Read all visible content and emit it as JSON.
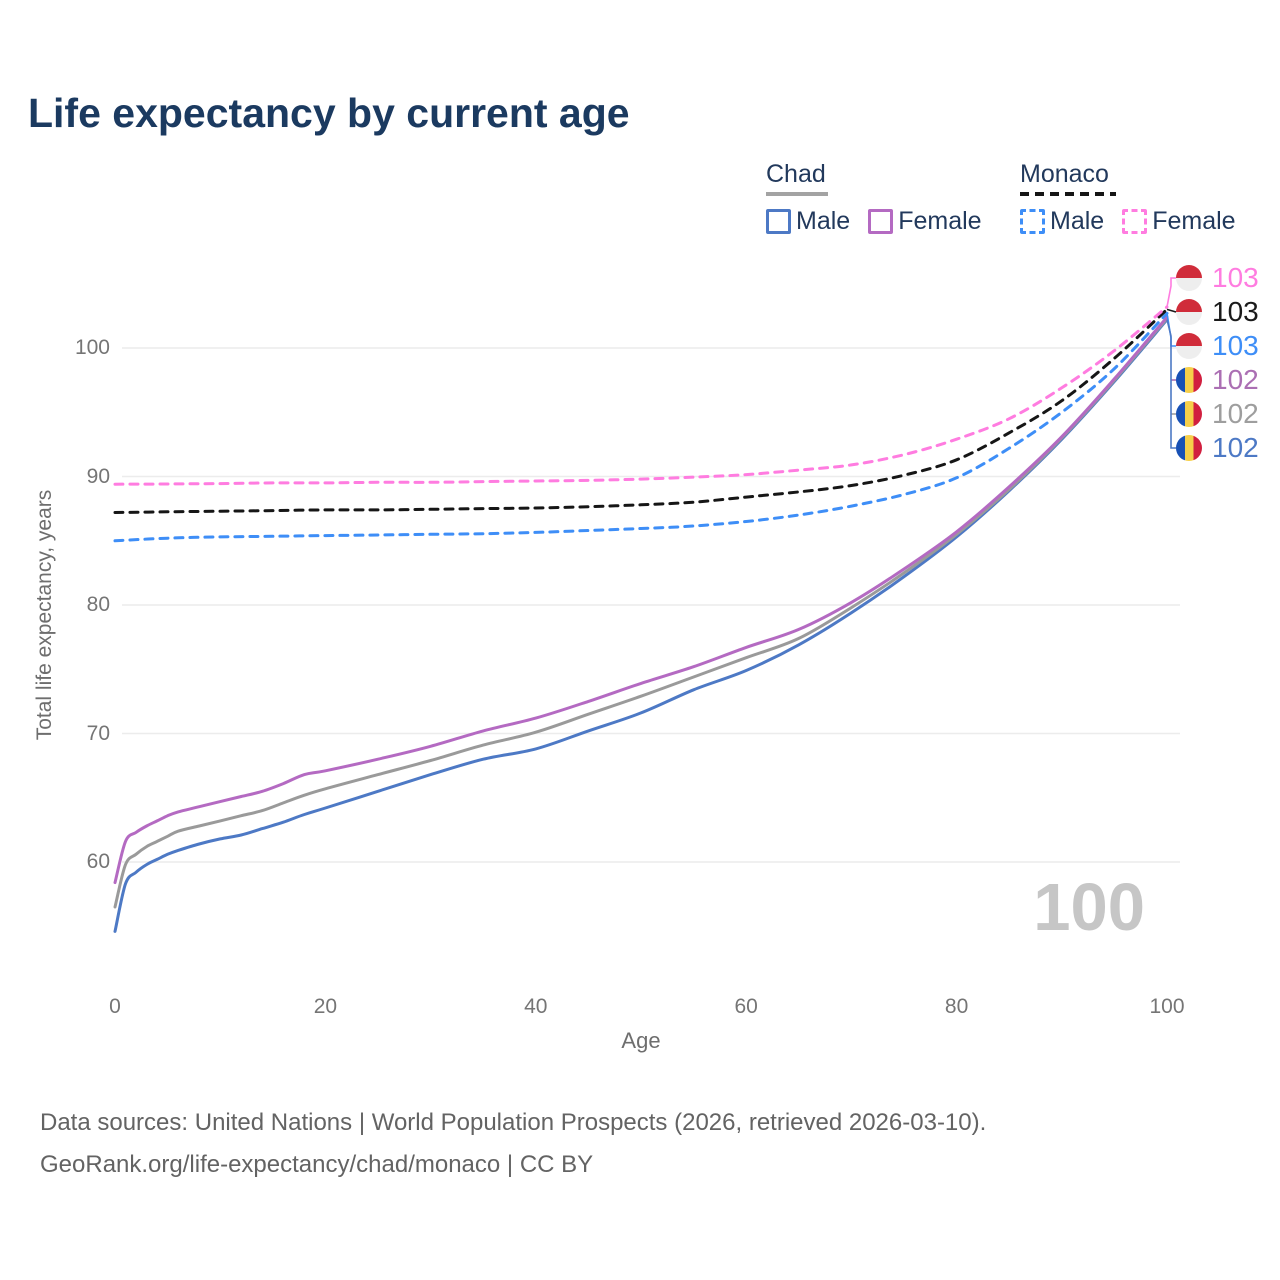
{
  "title": "Life expectancy by current age",
  "watermark": "100",
  "legend": {
    "chad": {
      "label": "Chad",
      "male": "Male",
      "female": "Female"
    },
    "monaco": {
      "label": "Monaco",
      "male": "Male",
      "female": "Female"
    }
  },
  "axes": {
    "y_label": "Total life expectancy, years",
    "x_label": "Age"
  },
  "footer": {
    "line1": "Data sources: United Nations | World Population Prospects (2026, retrieved 2026-03-10).",
    "line2": "GeoRank.org/life-expectancy/chad/monaco | CC BY"
  },
  "end_labels": [
    {
      "value": "103",
      "color": "#ff7ce0",
      "flag": "monaco",
      "series_index": 5
    },
    {
      "value": "103",
      "color": "#1a1a1a",
      "flag": "monaco",
      "series_index": 4
    },
    {
      "value": "103",
      "color": "#3e8ef7",
      "flag": "monaco",
      "series_index": 3
    },
    {
      "value": "102",
      "color": "#ab6fb3",
      "flag": "chad",
      "series_index": 2
    },
    {
      "value": "102",
      "color": "#9e9e9e",
      "flag": "chad",
      "series_index": 1
    },
    {
      "value": "102",
      "color": "#4d79c5",
      "flag": "chad",
      "series_index": 0
    }
  ],
  "chart_data": {
    "type": "line",
    "title": "Life expectancy by current age",
    "xlabel": "Age",
    "ylabel": "Total life expectancy, years",
    "x_ticks": [
      0,
      20,
      40,
      60,
      80,
      100
    ],
    "y_ticks": [
      100,
      90,
      80,
      70,
      60
    ],
    "xlim": [
      0,
      100
    ],
    "ylim": [
      54,
      104
    ],
    "grid": "horizontal-only",
    "legend_position": "top-right",
    "series": [
      {
        "name": "Chad Male",
        "country": "Chad",
        "group": "Male",
        "style": "solid",
        "color": "#4d79c5",
        "end_label": 102,
        "points": [
          [
            0,
            54.6
          ],
          [
            1,
            58.3
          ],
          [
            2,
            59.2
          ],
          [
            3,
            59.8
          ],
          [
            4,
            60.2
          ],
          [
            5,
            60.6
          ],
          [
            6,
            60.9
          ],
          [
            8,
            61.4
          ],
          [
            10,
            61.8
          ],
          [
            12,
            62.1
          ],
          [
            14,
            62.6
          ],
          [
            16,
            63.1
          ],
          [
            18,
            63.7
          ],
          [
            20,
            64.2
          ],
          [
            25,
            65.5
          ],
          [
            30,
            66.8
          ],
          [
            35,
            68.0
          ],
          [
            40,
            68.8
          ],
          [
            45,
            70.2
          ],
          [
            50,
            71.6
          ],
          [
            55,
            73.4
          ],
          [
            60,
            74.9
          ],
          [
            65,
            76.9
          ],
          [
            70,
            79.4
          ],
          [
            75,
            82.2
          ],
          [
            80,
            85.3
          ],
          [
            85,
            88.9
          ],
          [
            90,
            92.9
          ],
          [
            95,
            97.4
          ],
          [
            100,
            102.2
          ]
        ]
      },
      {
        "name": "Chad (both sexes)",
        "country": "Chad",
        "group": "Both",
        "style": "solid",
        "color": "#9a9a9a",
        "end_label": 102,
        "points": [
          [
            0,
            56.5
          ],
          [
            1,
            59.8
          ],
          [
            2,
            60.6
          ],
          [
            3,
            61.2
          ],
          [
            4,
            61.6
          ],
          [
            5,
            62.0
          ],
          [
            6,
            62.4
          ],
          [
            8,
            62.8
          ],
          [
            10,
            63.2
          ],
          [
            12,
            63.6
          ],
          [
            14,
            64.0
          ],
          [
            16,
            64.6
          ],
          [
            18,
            65.2
          ],
          [
            20,
            65.7
          ],
          [
            25,
            66.8
          ],
          [
            30,
            67.9
          ],
          [
            35,
            69.1
          ],
          [
            40,
            70.1
          ],
          [
            45,
            71.5
          ],
          [
            50,
            72.9
          ],
          [
            55,
            74.4
          ],
          [
            60,
            75.9
          ],
          [
            65,
            77.4
          ],
          [
            70,
            79.8
          ],
          [
            75,
            82.5
          ],
          [
            80,
            85.5
          ],
          [
            85,
            89.0
          ],
          [
            90,
            93.0
          ],
          [
            95,
            97.5
          ],
          [
            100,
            102.3
          ]
        ]
      },
      {
        "name": "Chad Female",
        "country": "Chad",
        "group": "Female",
        "style": "solid",
        "color": "#b46ac2",
        "end_label": 102,
        "points": [
          [
            0,
            58.4
          ],
          [
            1,
            61.6
          ],
          [
            2,
            62.3
          ],
          [
            3,
            62.8
          ],
          [
            4,
            63.2
          ],
          [
            5,
            63.6
          ],
          [
            6,
            63.9
          ],
          [
            8,
            64.3
          ],
          [
            10,
            64.7
          ],
          [
            12,
            65.1
          ],
          [
            14,
            65.5
          ],
          [
            16,
            66.1
          ],
          [
            18,
            66.8
          ],
          [
            20,
            67.1
          ],
          [
            25,
            68.0
          ],
          [
            30,
            69.0
          ],
          [
            35,
            70.2
          ],
          [
            40,
            71.2
          ],
          [
            45,
            72.5
          ],
          [
            50,
            73.9
          ],
          [
            55,
            75.2
          ],
          [
            60,
            76.7
          ],
          [
            65,
            78.1
          ],
          [
            70,
            80.2
          ],
          [
            75,
            82.8
          ],
          [
            80,
            85.7
          ],
          [
            85,
            89.2
          ],
          [
            90,
            93.1
          ],
          [
            95,
            97.6
          ],
          [
            100,
            102.4
          ]
        ]
      },
      {
        "name": "Monaco Male",
        "country": "Monaco",
        "group": "Male",
        "style": "dashed",
        "color": "#3e8ef7",
        "end_label": 103,
        "points": [
          [
            0,
            85.0
          ],
          [
            5,
            85.2
          ],
          [
            10,
            85.3
          ],
          [
            15,
            85.35
          ],
          [
            20,
            85.4
          ],
          [
            25,
            85.45
          ],
          [
            30,
            85.5
          ],
          [
            35,
            85.55
          ],
          [
            40,
            85.65
          ],
          [
            45,
            85.8
          ],
          [
            50,
            85.95
          ],
          [
            55,
            86.15
          ],
          [
            60,
            86.5
          ],
          [
            65,
            87.0
          ],
          [
            70,
            87.7
          ],
          [
            75,
            88.6
          ],
          [
            80,
            89.9
          ],
          [
            85,
            92.2
          ],
          [
            90,
            95.0
          ],
          [
            95,
            98.4
          ],
          [
            100,
            102.7
          ]
        ]
      },
      {
        "name": "Monaco (both sexes)",
        "country": "Monaco",
        "group": "Both",
        "style": "dashed",
        "color": "#161616",
        "end_label": 103,
        "points": [
          [
            0,
            87.2
          ],
          [
            5,
            87.25
          ],
          [
            10,
            87.3
          ],
          [
            15,
            87.35
          ],
          [
            20,
            87.4
          ],
          [
            25,
            87.4
          ],
          [
            30,
            87.45
          ],
          [
            35,
            87.5
          ],
          [
            40,
            87.55
          ],
          [
            45,
            87.65
          ],
          [
            50,
            87.8
          ],
          [
            55,
            88.0
          ],
          [
            60,
            88.4
          ],
          [
            65,
            88.8
          ],
          [
            70,
            89.3
          ],
          [
            75,
            90.1
          ],
          [
            80,
            91.3
          ],
          [
            85,
            93.4
          ],
          [
            90,
            95.9
          ],
          [
            95,
            99.2
          ],
          [
            100,
            103.0
          ]
        ]
      },
      {
        "name": "Monaco Female",
        "country": "Monaco",
        "group": "Female",
        "style": "dashed",
        "color": "#ff7ce0",
        "end_label": 103,
        "points": [
          [
            0,
            89.4
          ],
          [
            5,
            89.42
          ],
          [
            10,
            89.45
          ],
          [
            15,
            89.5
          ],
          [
            20,
            89.5
          ],
          [
            25,
            89.55
          ],
          [
            30,
            89.55
          ],
          [
            35,
            89.6
          ],
          [
            40,
            89.65
          ],
          [
            45,
            89.7
          ],
          [
            50,
            89.8
          ],
          [
            55,
            89.95
          ],
          [
            60,
            90.15
          ],
          [
            65,
            90.5
          ],
          [
            70,
            90.9
          ],
          [
            75,
            91.7
          ],
          [
            80,
            92.9
          ],
          [
            85,
            94.5
          ],
          [
            90,
            96.9
          ],
          [
            95,
            99.8
          ],
          [
            100,
            103.2
          ]
        ]
      }
    ]
  }
}
